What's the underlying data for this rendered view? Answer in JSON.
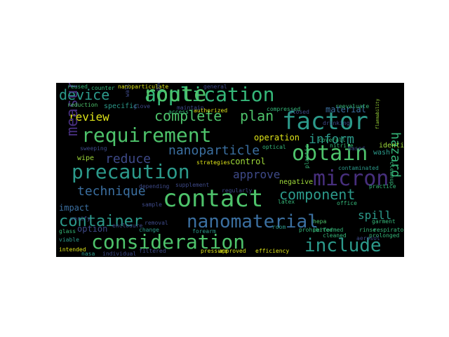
{
  "palette": {
    "background": "#000000",
    "teal": "#35b779",
    "cyan": "#2c9a8b",
    "green": "#4ec36b",
    "blue": "#3b6fa0",
    "indigo": "#3e4a89",
    "purple": "#472f7d",
    "yellow": "#dde318",
    "lime": "#9fda3a"
  },
  "words": [
    {
      "text": "application"
    },
    {
      "text": "route"
    },
    {
      "text": "device"
    },
    {
      "text": "requirement"
    },
    {
      "text": "factor"
    },
    {
      "text": "complete"
    },
    {
      "text": "plan"
    },
    {
      "text": "review"
    },
    {
      "text": "hazard"
    },
    {
      "text": "inform"
    },
    {
      "text": "material"
    },
    {
      "text": "measure"
    },
    {
      "text": "nanoparticle"
    },
    {
      "text": "obtain"
    },
    {
      "text": "reduce"
    },
    {
      "text": "precaution"
    },
    {
      "text": "micron"
    },
    {
      "text": "approve"
    },
    {
      "text": "control"
    },
    {
      "text": "technique"
    },
    {
      "text": "component"
    },
    {
      "text": "contact"
    },
    {
      "text": "impact"
    },
    {
      "text": "container"
    },
    {
      "text": "nanomaterial"
    },
    {
      "text": "spill"
    },
    {
      "text": "option"
    },
    {
      "text": "consideration"
    },
    {
      "text": "include"
    },
    {
      "text": "operation"
    },
    {
      "text": "identify"
    },
    {
      "text": "negative"
    },
    {
      "text": "contaminated"
    },
    {
      "text": "hepa"
    },
    {
      "text": "wipe"
    },
    {
      "text": "sweeping"
    },
    {
      "text": "supplement"
    },
    {
      "text": "specific"
    },
    {
      "text": "reused"
    },
    {
      "text": "nanoparticulate"
    },
    {
      "text": "reduction"
    },
    {
      "text": "authorized"
    },
    {
      "text": "access"
    },
    {
      "text": "compressed"
    },
    {
      "text": "drinking"
    },
    {
      "text": "strategies"
    },
    {
      "text": "regularly"
    },
    {
      "text": "cleaned"
    },
    {
      "text": "prohibited"
    },
    {
      "text": "rinse"
    },
    {
      "text": "room"
    },
    {
      "text": "forearm"
    },
    {
      "text": "removal"
    },
    {
      "text": "glass"
    },
    {
      "text": "viable"
    },
    {
      "text": "nasa"
    },
    {
      "text": "individual"
    },
    {
      "text": "filtered"
    },
    {
      "text": "pressure"
    },
    {
      "text": "approved"
    },
    {
      "text": "efficiency"
    },
    {
      "text": "intended"
    },
    {
      "text": "change"
    },
    {
      "text": "enclosure"
    },
    {
      "text": "latex"
    },
    {
      "text": "nitrile"
    },
    {
      "text": "coverall"
    },
    {
      "text": "wash"
    },
    {
      "text": "practice"
    },
    {
      "text": "garment"
    },
    {
      "text": "respiratory"
    },
    {
      "text": "prolonged"
    },
    {
      "text": "office"
    },
    {
      "text": "performed"
    },
    {
      "text": "maintain"
    },
    {
      "text": "counter"
    },
    {
      "text": "general"
    },
    {
      "text": "walls"
    },
    {
      "text": "glove"
    },
    {
      "text": "cleanup"
    },
    {
      "text": "depending"
    },
    {
      "text": "sample"
    },
    {
      "text": "plastic"
    },
    {
      "text": "verify"
    },
    {
      "text": "aerosol"
    },
    {
      "text": "reevaluate"
    },
    {
      "text": "closed"
    },
    {
      "text": "optical"
    },
    {
      "text": "based"
    },
    {
      "text": "downgraded"
    },
    {
      "text": "flammability"
    }
  ]
}
